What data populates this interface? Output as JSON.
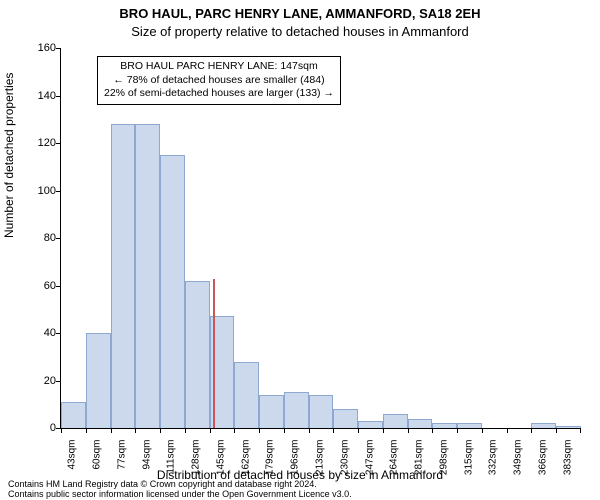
{
  "title_line1": "BRO HAUL, PARC HENRY LANE, AMMANFORD, SA18 2EH",
  "title_line2": "Size of property relative to detached houses in Ammanford",
  "ylabel": "Number of detached properties",
  "xlabel": "Distribution of detached houses by size in Ammanford",
  "footer_line1": "Contains HM Land Registry data © Crown copyright and database right 2024.",
  "footer_line2": "Contains public sector information licensed under the Open Government Licence v3.0.",
  "chart": {
    "type": "histogram",
    "ylim": [
      0,
      160
    ],
    "yticks": [
      0,
      20,
      40,
      60,
      80,
      100,
      120,
      140,
      160
    ],
    "xtick_labels": [
      "43sqm",
      "60sqm",
      "77sqm",
      "94sqm",
      "111sqm",
      "128sqm",
      "145sqm",
      "162sqm",
      "179sqm",
      "196sqm",
      "213sqm",
      "230sqm",
      "247sqm",
      "264sqm",
      "281sqm",
      "298sqm",
      "315sqm",
      "332sqm",
      "349sqm",
      "366sqm",
      "383sqm"
    ],
    "bar_values": [
      11,
      40,
      128,
      128,
      115,
      62,
      47,
      28,
      14,
      15,
      14,
      8,
      3,
      6,
      4,
      2,
      2,
      0,
      0,
      2,
      1
    ],
    "bar_fill": "#ccd9ed",
    "bar_edge": "#8fa8cf",
    "marker_bin_index": 6,
    "marker_fraction_in_bin": 0.12,
    "marker_color": "#cc5555",
    "background_color": "#ffffff",
    "axis_color": "#000000",
    "tick_fontsize": 10,
    "label_fontsize": 12,
    "title_fontsize": 13
  },
  "annotation": {
    "line1": "BRO HAUL PARC HENRY LANE: 147sqm",
    "line2": "← 78% of detached houses are smaller (484)",
    "line3": "22% of semi-detached houses are larger (133) →"
  }
}
